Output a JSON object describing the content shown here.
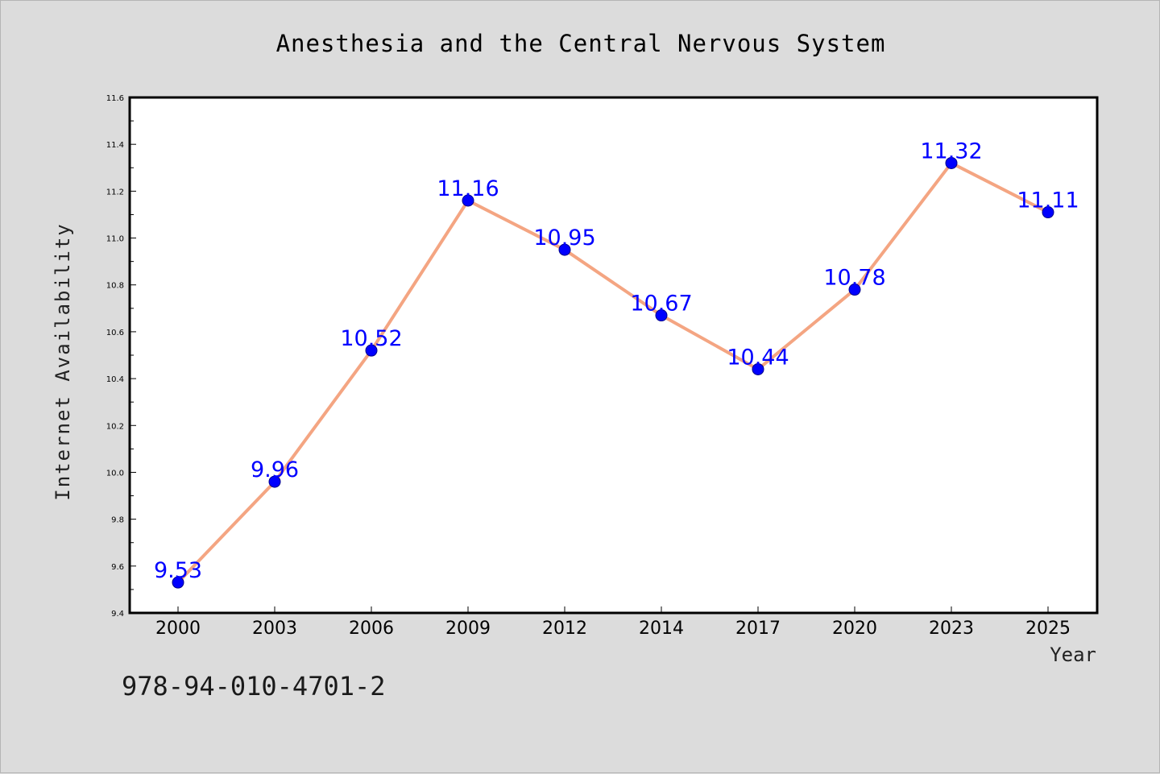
{
  "chart_data": {
    "type": "line",
    "title": "Anesthesia and the Central Nervous System",
    "xlabel": "Year",
    "ylabel": "Internet Availability",
    "categories": [
      "2000",
      "2003",
      "2006",
      "2009",
      "2012",
      "2014",
      "2017",
      "2020",
      "2023",
      "2025"
    ],
    "series": [
      {
        "values": [
          9.53,
          9.96,
          10.52,
          11.16,
          10.95,
          10.67,
          10.44,
          10.78,
          11.32,
          11.11
        ],
        "labels": [
          "9.53",
          "9.96",
          "10.52",
          "11.16",
          "10.95",
          "10.67",
          "10.44",
          "10.78",
          "11.32",
          "11.11"
        ]
      }
    ],
    "ylim": [
      9.4,
      11.6
    ],
    "yticks": [
      "9.4",
      "9.6",
      "9.8",
      "10.0",
      "10.2",
      "10.4",
      "10.6",
      "10.8",
      "11.0",
      "11.2",
      "11.4",
      "11.6"
    ],
    "grid": false,
    "legend": "none",
    "colors": {
      "line": "#f4a582",
      "marker": "#0000ff",
      "marker_edge": "#00008b",
      "label": "#0000ff",
      "background": "#dcdcdc",
      "plot_bg": "#ffffff"
    }
  },
  "annotation": "978-94-010-4701-2"
}
